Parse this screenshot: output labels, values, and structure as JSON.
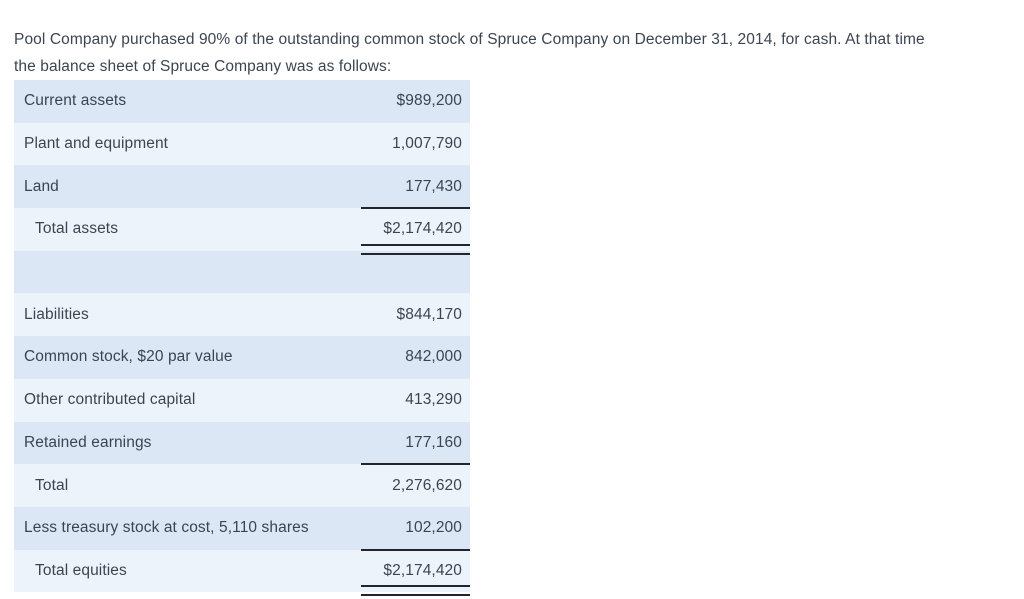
{
  "intro_text": "Pool Company purchased 90% of the outstanding common stock of Spruce Company on December 31, 2014, for cash. At that time\nthe balance sheet of Spruce Company was as follows:",
  "balance_sheet": {
    "rows": [
      {
        "label": "Current assets",
        "amount": "$989,200"
      },
      {
        "label": "Plant and equipment",
        "amount": "1,007,790"
      },
      {
        "label": "Land",
        "amount": "177,430",
        "rule": "single"
      },
      {
        "label": "Total assets",
        "amount": "$2,174,420",
        "indent": true,
        "rule": "double"
      },
      {
        "spacer": true
      },
      {
        "label": "Liabilities",
        "amount": "$844,170"
      },
      {
        "label": "Common stock, $20 par value",
        "amount": "842,000"
      },
      {
        "label": "Other contributed capital",
        "amount": "413,290"
      },
      {
        "label": "Retained earnings",
        "amount": "177,160",
        "rule": "single"
      },
      {
        "label": "Total",
        "amount": "2,276,620",
        "indent": true
      },
      {
        "label": "Less treasury stock at cost, 5,110 shares",
        "amount": "102,200",
        "rule": "single"
      },
      {
        "label": "Total equities",
        "amount": "$2,174,420",
        "indent": true,
        "rule": "double"
      }
    ]
  },
  "colors": {
    "row_dark": "#dbe7f5",
    "row_light": "#edf3fb",
    "text": "#3b4551",
    "rule": "#22262c",
    "background": "#ffffff"
  }
}
